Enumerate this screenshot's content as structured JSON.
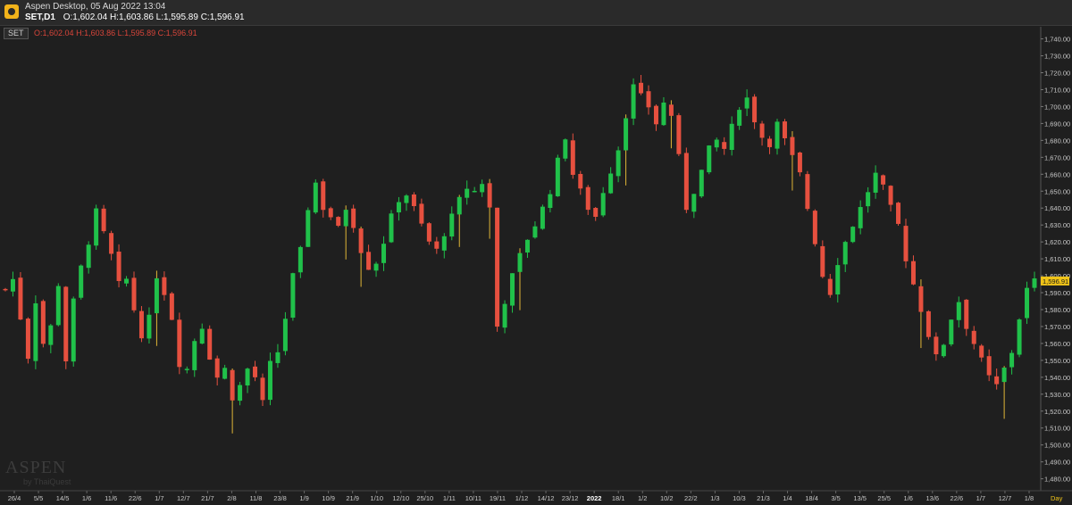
{
  "window": {
    "title": "Aspen Desktop, 05 Aug 2022 13:04",
    "symbol_timeframe": "SET,D1",
    "ohlc": "O:1,602.04 H:1,603.86 L:1,595.89 C:1,596.91"
  },
  "legend": {
    "symbol": "SET",
    "ohlc": "O:1,602.04 H:1,603.86 L:1,595.89 C:1,596.91"
  },
  "watermark": {
    "brand": "ASPEN",
    "sub": "by ThaiQuest"
  },
  "colors": {
    "background": "#1f1f1f",
    "up_candle": "#20c14a",
    "down_candle": "#e6503f",
    "wick": "#e0b637",
    "price_tag": "#f0c419",
    "axis_text": "#c8c8c8"
  },
  "chart_data": {
    "type": "candlestick",
    "title": "",
    "xlabel": "",
    "ylabel": "",
    "ylim": [
      1474,
      1744
    ],
    "y_ticks": [
      "1,740.00",
      "1,730.00",
      "1,720.00",
      "1,710.00",
      "1,700.00",
      "1,690.00",
      "1,680.00",
      "1,670.00",
      "1,660.00",
      "1,650.00",
      "1,640.00",
      "1,630.00",
      "1,620.00",
      "1,610.00",
      "1,600.00",
      "1,590.00",
      "1,580.00",
      "1,570.00",
      "1,560.00",
      "1,550.00",
      "1,540.00",
      "1,530.00",
      "1,520.00",
      "1,510.00",
      "1,500.00",
      "1,490.00",
      "1,480.00"
    ],
    "x_labels": [
      "26/4",
      "5/5",
      "14/5",
      "1/6",
      "11/6",
      "22/6",
      "1/7",
      "12/7",
      "21/7",
      "2/8",
      "11/8",
      "23/8",
      "1/9",
      "10/9",
      "21/9",
      "1/10",
      "12/10",
      "25/10",
      "1/11",
      "10/11",
      "19/11",
      "1/12",
      "14/12",
      "23/12",
      "2022",
      "18/1",
      "1/2",
      "10/2",
      "22/2",
      "1/3",
      "10/3",
      "21/3",
      "1/4",
      "18/4",
      "3/5",
      "13/5",
      "25/5",
      "1/6",
      "13/6",
      "22/6",
      "1/7",
      "12/7",
      "1/8"
    ],
    "x_unit_label": "Day",
    "last_price": "1,596.91",
    "series_path": [
      1592,
      1598,
      1575,
      1552,
      1585,
      1560,
      1570,
      1595,
      1550,
      1585,
      1605,
      1620,
      1638,
      1625,
      1612,
      1595,
      1598,
      1580,
      1565,
      1575,
      1600,
      1590,
      1575,
      1548,
      1545,
      1562,
      1570,
      1552,
      1540,
      1545,
      1528,
      1535,
      1545,
      1540,
      1525,
      1548,
      1555,
      1575,
      1600,
      1615,
      1640,
      1655,
      1640,
      1635,
      1628,
      1640,
      1630,
      1615,
      1605,
      1608,
      1620,
      1635,
      1645,
      1648,
      1640,
      1630,
      1620,
      1615,
      1625,
      1635,
      1645,
      1652,
      1650,
      1655,
      1640,
      1570,
      1585,
      1600,
      1612,
      1622,
      1630,
      1640,
      1650,
      1668,
      1682,
      1660,
      1650,
      1640,
      1635,
      1650,
      1662,
      1675,
      1695,
      1712,
      1706,
      1700,
      1690,
      1702,
      1695,
      1670,
      1640,
      1650,
      1662,
      1675,
      1680,
      1675,
      1688,
      1700,
      1705,
      1692,
      1682,
      1678,
      1690,
      1680,
      1670,
      1660,
      1640,
      1620,
      1600,
      1590,
      1608,
      1620,
      1630,
      1640,
      1650,
      1660,
      1652,
      1640,
      1630,
      1610,
      1595,
      1580,
      1565,
      1552,
      1560,
      1575,
      1585,
      1570,
      1560,
      1550,
      1540,
      1535,
      1545,
      1555,
      1575,
      1592,
      1597
    ]
  }
}
